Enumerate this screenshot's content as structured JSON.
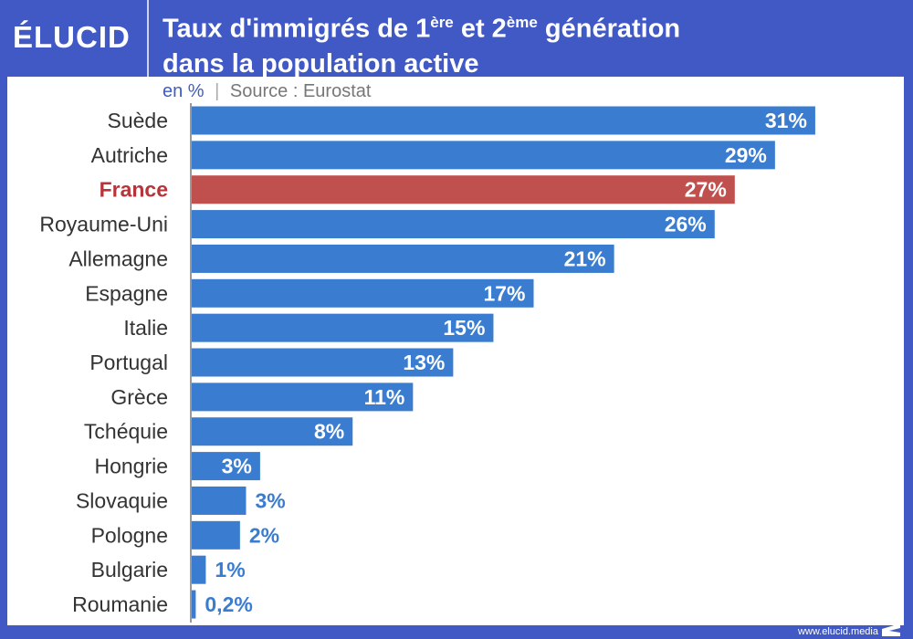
{
  "header": {
    "logo": "ÉLUCID",
    "title_part1": "Taux d'immigrés de 1",
    "title_sup1": "ère",
    "title_part2": " et 2",
    "title_sup2": "ème",
    "title_part3": " génération",
    "title_line2": "dans la population active"
  },
  "subtitle": {
    "unit": "en %",
    "sep": "|",
    "source": "Source : Eurostat"
  },
  "footer": {
    "url": "www.elucid.media"
  },
  "colors": {
    "bar": "#3a7dd0",
    "highlight": "#c0504d",
    "highlight_label": "#b5363a",
    "frame": "#4059c4"
  },
  "chart_data": {
    "type": "bar",
    "orientation": "horizontal",
    "title": "Taux d'immigrés de 1ère et 2ème génération dans la population active",
    "xlabel": "en %",
    "ylabel": "",
    "categories": [
      "Suède",
      "Autriche",
      "France",
      "Royaume-Uni",
      "Allemagne",
      "Espagne",
      "Italie",
      "Portugal",
      "Grèce",
      "Tchéquie",
      "Hongrie",
      "Slovaquie",
      "Pologne",
      "Bulgarie",
      "Roumanie"
    ],
    "values": [
      31,
      29,
      27,
      26,
      21,
      17,
      15,
      13,
      11,
      8,
      3.4,
      2.7,
      2.4,
      0.7,
      0.2
    ],
    "labels": [
      "31%",
      "29%",
      "27%",
      "26%",
      "21%",
      "17%",
      "15%",
      "13%",
      "11%",
      "8%",
      "3%",
      "3%",
      "2%",
      "1%",
      "0,2%"
    ],
    "highlight": "France",
    "xlim": [
      0,
      31
    ]
  }
}
